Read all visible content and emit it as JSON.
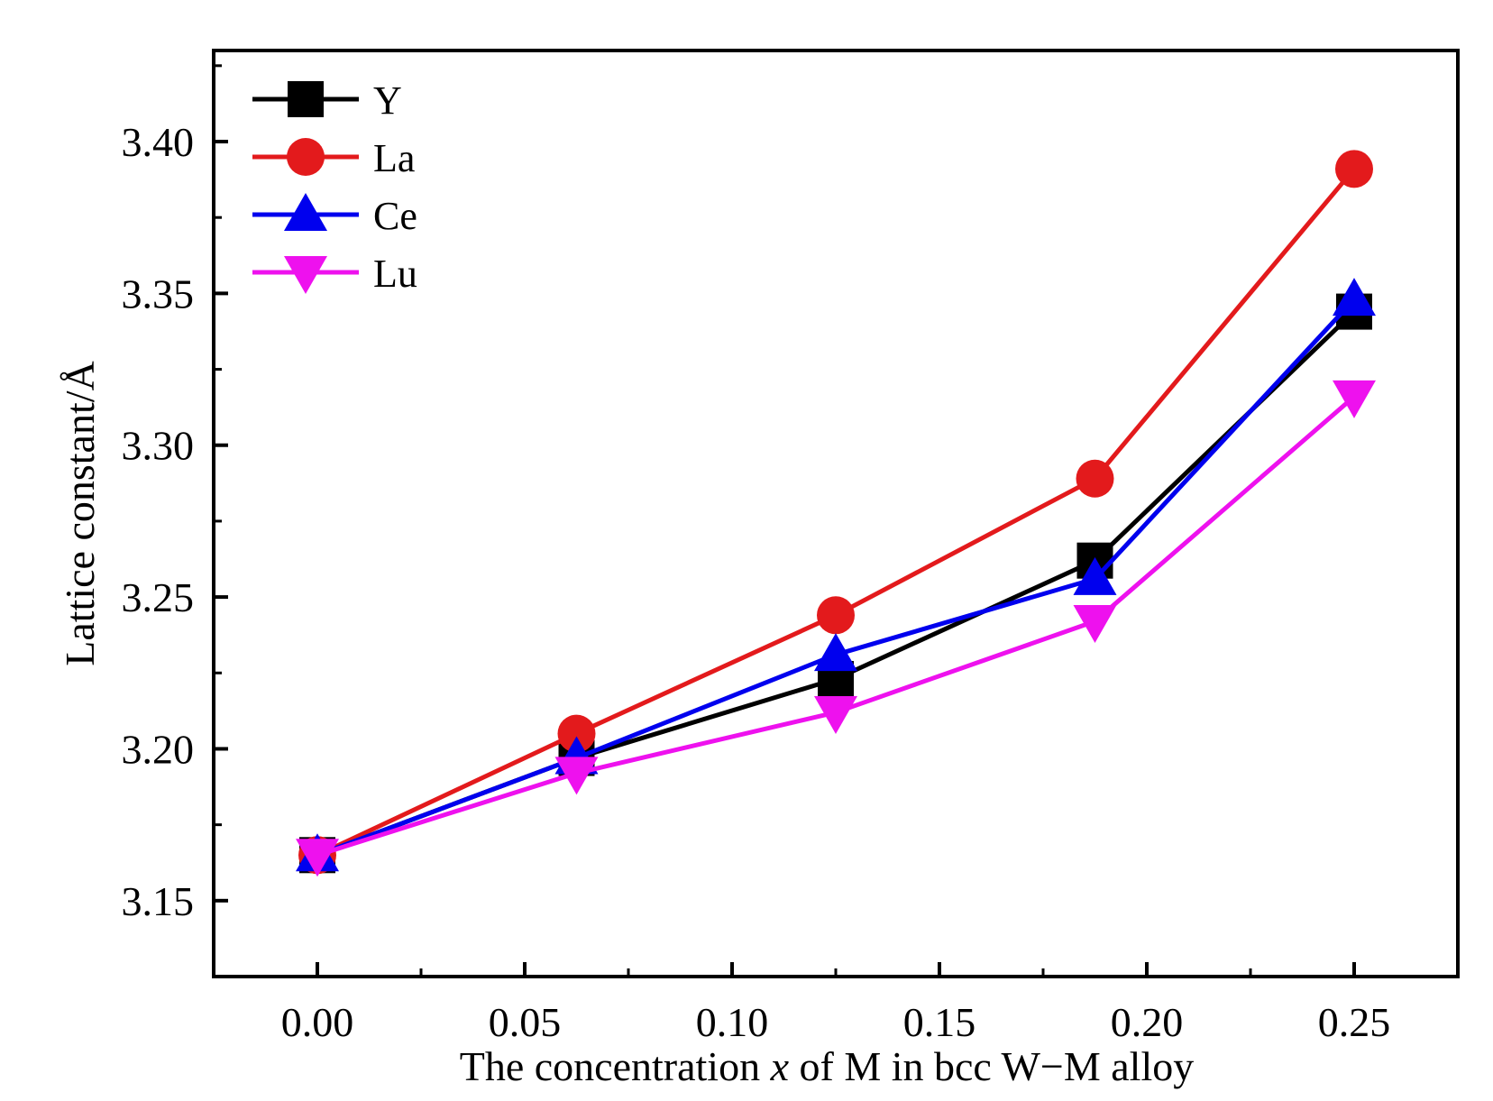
{
  "chart_data": {
    "type": "line",
    "title": "",
    "xlabel_prefix": "The concentration ",
    "xlabel_var": "x",
    "xlabel_suffix": " of  M in bcc W−M alloy",
    "ylabel": "Lattice constant/Å",
    "xlim": [
      -0.025,
      0.275
    ],
    "ylim": [
      3.125,
      3.43
    ],
    "x_ticks": [
      "0.00",
      "0.05",
      "0.10",
      "0.15",
      "0.20",
      "0.25"
    ],
    "y_ticks": [
      "3.15",
      "3.20",
      "3.25",
      "3.30",
      "3.35",
      "3.40"
    ],
    "x": [
      0.0,
      0.0625,
      0.125,
      0.1875,
      0.25
    ],
    "legend_position": "top-left",
    "series": [
      {
        "name": "Y",
        "values": [
          3.165,
          3.197,
          3.223,
          3.262,
          3.344
        ],
        "color": "#000000",
        "marker": "square"
      },
      {
        "name": "La",
        "values": [
          3.165,
          3.205,
          3.244,
          3.289,
          3.391
        ],
        "color": "#e31a1c",
        "marker": "circle"
      },
      {
        "name": "Ce",
        "values": [
          3.165,
          3.197,
          3.231,
          3.256,
          3.348
        ],
        "color": "#0000ee",
        "marker": "triangle-up"
      },
      {
        "name": "Lu",
        "values": [
          3.165,
          3.192,
          3.212,
          3.242,
          3.316
        ],
        "color": "#ee11ee",
        "marker": "triangle-down"
      }
    ]
  }
}
